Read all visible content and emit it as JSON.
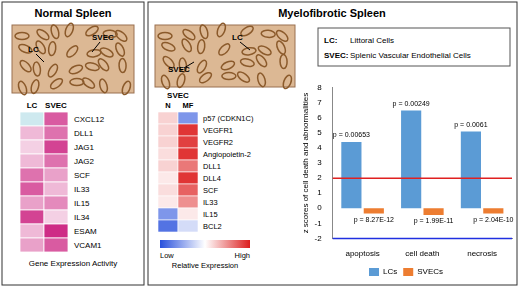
{
  "normal": {
    "title": "Normal Spleen",
    "photo_labels": [
      "SVEC",
      "LC"
    ],
    "heatmap": {
      "columns": [
        "LC",
        "SVEC"
      ],
      "rows": [
        "CXCL12",
        "DLL1",
        "JAG1",
        "JAG2",
        "SCF",
        "IL33",
        "IL15",
        "IL34",
        "ESAM",
        "VCAM1"
      ],
      "cells": [
        [
          -0.3,
          0.7
        ],
        [
          0.3,
          0.6
        ],
        [
          0.2,
          0.8
        ],
        [
          0.3,
          0.6
        ],
        [
          0.6,
          0.4
        ],
        [
          0.7,
          0.3
        ],
        [
          0.4,
          0.5
        ],
        [
          0.8,
          0.2
        ],
        [
          0.3,
          0.9
        ],
        [
          0.4,
          0.7
        ]
      ],
      "color_range": [
        -1,
        1
      ]
    },
    "caption": "Gene Expression Activity"
  },
  "myelofibrotic": {
    "title": "Myelofibrotic Spleen",
    "photo_labels": [
      "LC",
      "SVEC"
    ],
    "key": [
      {
        "abbr": "LC:",
        "text": "Littoral Cells"
      },
      {
        "abbr": "SVEC:",
        "text": "Splenic Vascular Endothelial Cells"
      }
    ],
    "heatmap": {
      "group": "SVEC",
      "columns": [
        "N",
        "MF"
      ],
      "rows": [
        "p57 (CDKN1C)",
        "VEGFR1",
        "VEGFR2",
        "Angiopoietin-2",
        "DLL1",
        "DLL4",
        "SCF",
        "IL33",
        "IL15",
        "BCL2"
      ],
      "cells": [
        [
          0.2,
          -0.6
        ],
        [
          0.2,
          0.9
        ],
        [
          0.2,
          0.85
        ],
        [
          0.15,
          0.9
        ],
        [
          0.2,
          0.6
        ],
        [
          0.1,
          0.9
        ],
        [
          0.15,
          0.7
        ],
        [
          0.1,
          0.5
        ],
        [
          -0.6,
          0.1
        ],
        [
          -0.8,
          -0.2
        ]
      ],
      "color_range": [
        -1,
        1
      ],
      "color_low": "Low",
      "color_high": "High",
      "color_title": "Relative Expression"
    }
  },
  "chart_data": {
    "type": "bar",
    "y_label": "z scores of cell death and abnormalities",
    "categories": [
      "apoptosis",
      "cell death",
      "necrosis"
    ],
    "series": [
      {
        "name": "LCs",
        "color": "#5b9bd5",
        "values": [
          4.4,
          6.5,
          5.1
        ],
        "annotations": [
          "p = 0.00653",
          "p = 0.00249",
          "p = 0.0061"
        ]
      },
      {
        "name": "SVECs",
        "color": "#ed7d31",
        "values": [
          -0.35,
          -0.45,
          -0.35
        ],
        "annotations": [
          "p = 8.27E-12",
          "p = 1.99E-11",
          "p = 2.04E-10"
        ]
      }
    ],
    "reference_lines": [
      {
        "value": 2,
        "color": "#e02020"
      },
      {
        "value": -2,
        "color": "#2030e0"
      }
    ],
    "ylim": [
      -2,
      8
    ],
    "yticks": [
      -2,
      -1,
      0,
      1,
      2,
      3,
      4,
      5,
      6,
      7,
      8
    ],
    "grid": false,
    "legend": "bottom"
  }
}
